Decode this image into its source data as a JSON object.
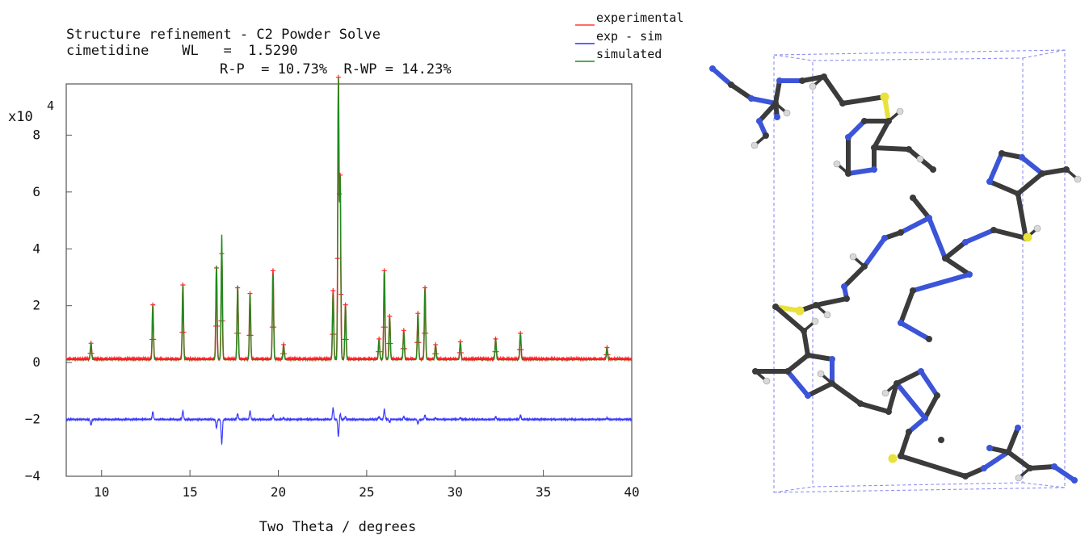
{
  "header": {
    "line1": "Structure refinement - C2 Powder Solve",
    "line2": "cimetidine    WL   =  1.5290",
    "line3": "R-P  = 10.73%  R-WP = 14.23%"
  },
  "legend": [
    {
      "label": "experimental",
      "color": "#ff3b3b"
    },
    {
      "label": "exp - sim",
      "color": "#2f2fff"
    },
    {
      "label": "simulated",
      "color": "#1e8b1e"
    }
  ],
  "chart_data": {
    "type": "line",
    "xlabel": "Two Theta / degrees",
    "y_multiplier": "x10",
    "y_multiplier_exp": "4",
    "xlim": [
      8,
      40
    ],
    "ylim": [
      -4,
      9.8
    ],
    "xticks": [
      10,
      15,
      20,
      25,
      30,
      35,
      40
    ],
    "yticks": [
      -4,
      -2,
      0,
      2,
      4,
      6,
      8
    ],
    "baseline_experimental": 0.13,
    "baseline_difference": -2.0,
    "peaks": [
      {
        "x": 9.4,
        "sim": 0.6,
        "exp": 0.55,
        "diff": -0.2
      },
      {
        "x": 12.9,
        "sim": 1.9,
        "exp": 1.9,
        "diff": 0.25
      },
      {
        "x": 14.6,
        "sim": 2.6,
        "exp": 2.6,
        "diff": 0.3
      },
      {
        "x": 16.5,
        "sim": 3.3,
        "exp": 3.2,
        "diff": -0.3
      },
      {
        "x": 16.8,
        "sim": 4.4,
        "exp": 3.7,
        "diff": -0.85
      },
      {
        "x": 17.7,
        "sim": 2.6,
        "exp": 2.5,
        "diff": 0.2
      },
      {
        "x": 18.4,
        "sim": 2.3,
        "exp": 2.3,
        "diff": 0.3
      },
      {
        "x": 19.7,
        "sim": 3.0,
        "exp": 3.1,
        "diff": 0.15
      },
      {
        "x": 20.3,
        "sim": 0.5,
        "exp": 0.5,
        "diff": 0.05
      },
      {
        "x": 23.1,
        "sim": 2.3,
        "exp": 2.4,
        "diff": 0.4
      },
      {
        "x": 23.4,
        "sim": 9.8,
        "exp": 9.8,
        "diff": -0.6
      },
      {
        "x": 23.5,
        "sim": 6.3,
        "exp": 6.3,
        "diff": 0.2
      },
      {
        "x": 23.8,
        "sim": 1.9,
        "exp": 1.9,
        "diff": 0.1
      },
      {
        "x": 25.7,
        "sim": 0.7,
        "exp": 0.7,
        "diff": 0.1
      },
      {
        "x": 26.0,
        "sim": 3.1,
        "exp": 3.1,
        "diff": 0.35
      },
      {
        "x": 26.3,
        "sim": 1.5,
        "exp": 1.5,
        "diff": -0.1
      },
      {
        "x": 27.1,
        "sim": 1.0,
        "exp": 1.0,
        "diff": 0.1
      },
      {
        "x": 27.9,
        "sim": 1.6,
        "exp": 1.6,
        "diff": -0.15
      },
      {
        "x": 28.3,
        "sim": 2.5,
        "exp": 2.5,
        "diff": 0.15
      },
      {
        "x": 28.9,
        "sim": 0.5,
        "exp": 0.5,
        "diff": 0.05
      },
      {
        "x": 30.3,
        "sim": 0.6,
        "exp": 0.6,
        "diff": 0.05
      },
      {
        "x": 32.3,
        "sim": 0.7,
        "exp": 0.7,
        "diff": 0.1
      },
      {
        "x": 33.7,
        "sim": 0.9,
        "exp": 0.9,
        "diff": 0.15
      },
      {
        "x": 38.6,
        "sim": 0.4,
        "exp": 0.4,
        "diff": 0.05
      }
    ]
  },
  "colors": {
    "experimental": "#ff2a2a",
    "difference": "#3a3aff",
    "simulated": "#1e8b1e",
    "frame": "#555555",
    "cell": "#8f8ff0",
    "carbon": "#3b3b3b",
    "nitrogen": "#3b54d8",
    "sulfur": "#e8e23a",
    "hydrogen": "#d9d9d9"
  }
}
